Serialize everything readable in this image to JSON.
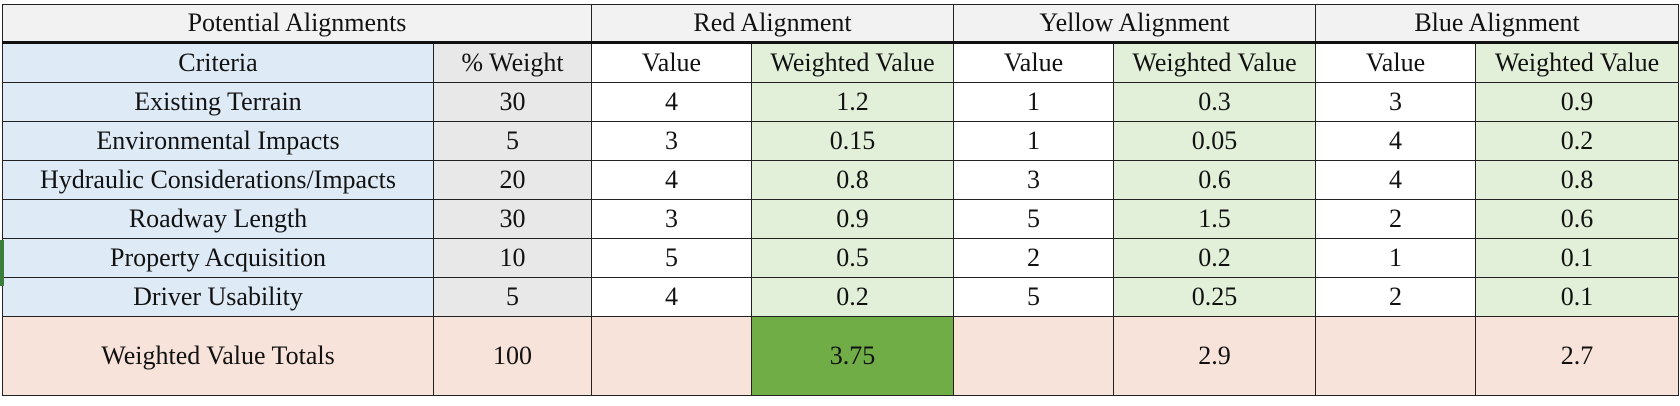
{
  "table": {
    "group_headers": [
      "Potential Alignments",
      "Red Alignment",
      "Yellow Alignment",
      "Blue Alignment"
    ],
    "sub_headers": [
      "Criteria",
      "% Weight",
      "Value",
      "Weighted Value",
      "Value",
      "Weighted Value",
      "Value",
      "Weighted Value"
    ],
    "rows": [
      {
        "criteria": "Existing Terrain",
        "weight": "30",
        "red_value": "4",
        "red_weighted": "1.2",
        "yellow_value": "1",
        "yellow_weighted": "0.3",
        "blue_value": "3",
        "blue_weighted": "0.9"
      },
      {
        "criteria": "Environmental Impacts",
        "weight": "5",
        "red_value": "3",
        "red_weighted": "0.15",
        "yellow_value": "1",
        "yellow_weighted": "0.05",
        "blue_value": "4",
        "blue_weighted": "0.2"
      },
      {
        "criteria": "Hydraulic Considerations/Impacts",
        "weight": "20",
        "red_value": "4",
        "red_weighted": "0.8",
        "yellow_value": "3",
        "yellow_weighted": "0.6",
        "blue_value": "4",
        "blue_weighted": "0.8"
      },
      {
        "criteria": "Roadway Length",
        "weight": "30",
        "red_value": "3",
        "red_weighted": "0.9",
        "yellow_value": "5",
        "yellow_weighted": "1.5",
        "blue_value": "2",
        "blue_weighted": "0.6"
      },
      {
        "criteria": "Property Acquisition",
        "weight": "10",
        "red_value": "5",
        "red_weighted": "0.5",
        "yellow_value": "2",
        "yellow_weighted": "0.2",
        "blue_value": "1",
        "blue_weighted": "0.1"
      },
      {
        "criteria": "Driver Usability",
        "weight": "5",
        "red_value": "4",
        "red_weighted": "0.2",
        "yellow_value": "5",
        "yellow_weighted": "0.25",
        "blue_value": "2",
        "blue_weighted": "0.1"
      }
    ],
    "totals": {
      "label": "Weighted Value Totals",
      "weight": "100",
      "red_value": "",
      "red_weighted": "3.75",
      "yellow_value": "",
      "yellow_weighted": "2.9",
      "blue_value": "",
      "blue_weighted": "2.7"
    },
    "colors": {
      "criteria_bg": "#deebf7",
      "weight_bg": "#e8e8e8",
      "weighted_bg": "#e2f0d9",
      "totals_bg": "#f8e3da",
      "best_total_bg": "#70ad47"
    }
  }
}
